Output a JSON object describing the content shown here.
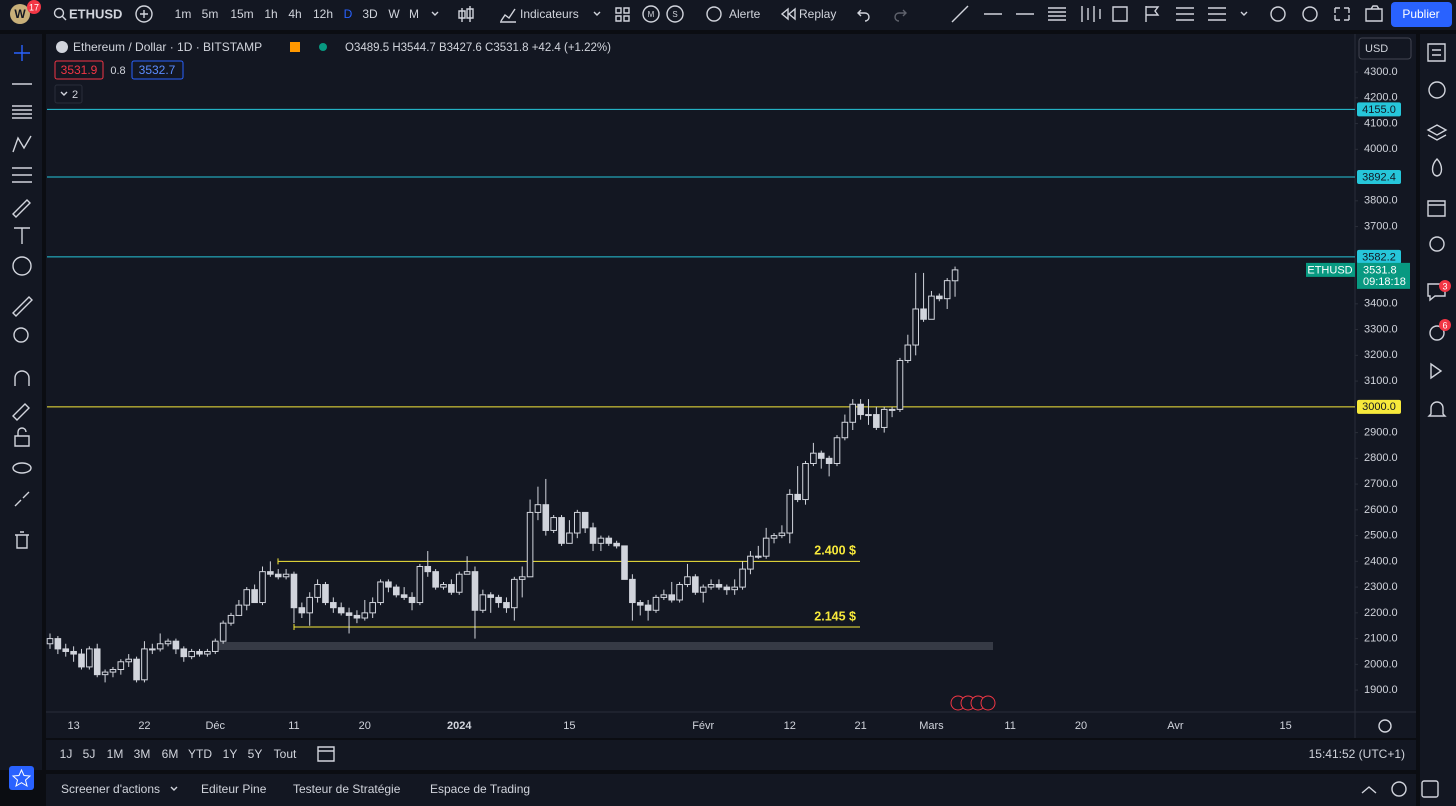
{
  "toolbar": {
    "logo_badge": "17",
    "symbol": "ETHUSD",
    "intervals": [
      "1m",
      "5m",
      "15m",
      "1h",
      "4h",
      "12h",
      "D",
      "3D",
      "W",
      "M"
    ],
    "indicators": "Indicateurs",
    "alert": "Alerte",
    "replay": "Replay",
    "publish": "Publier"
  },
  "legend": {
    "title": "Ethereum / Dollar · 1D · BITSTAMP",
    "ohlc": "O3489.5 H3544.7 B3427.6 C3531.8 +42.4 (+1.22%)",
    "bid": "3531.9",
    "spread": "0.8",
    "ask": "3532.7",
    "collapsed_count": "2"
  },
  "currency": "USD",
  "chart_data": {
    "type": "candlestick",
    "categories": [
      null,
      null,
      null,
      "13",
      null,
      null,
      null,
      null,
      null,
      null,
      null,
      null,
      "22",
      null,
      null,
      null,
      null,
      null,
      null,
      null,
      null,
      "Déc",
      null,
      null,
      null,
      null,
      null,
      null,
      null,
      null,
      null,
      "11",
      null,
      null,
      null,
      null,
      null,
      null,
      null,
      null,
      "20",
      null,
      null,
      null,
      null,
      null,
      null,
      null,
      null,
      null,
      null,
      null,
      "2024",
      null,
      null,
      null,
      null,
      null,
      null,
      null,
      null,
      null,
      null,
      null,
      null,
      null,
      "15",
      null,
      null,
      null,
      null,
      null,
      null,
      null,
      null,
      null,
      null,
      null,
      null,
      null,
      null,
      null,
      null,
      "Févr",
      null,
      null,
      null,
      null,
      null,
      null,
      null,
      null,
      null,
      null,
      "12",
      null,
      null,
      null,
      null,
      null,
      null,
      null,
      null,
      "21",
      null,
      null,
      null,
      null,
      null,
      null,
      null,
      null,
      "Mars",
      null,
      null,
      null
    ],
    "future_categories": [
      "11",
      "20",
      "Avr",
      "15"
    ],
    "open": [
      2080,
      2100,
      2060,
      2050,
      2040,
      1990,
      2060,
      1960,
      1970,
      1980,
      2010,
      2020,
      1940,
      2060,
      2060,
      2080,
      2090,
      2060,
      2030,
      2050,
      2040,
      2050,
      2090,
      2160,
      2190,
      2230,
      2290,
      2240,
      2360,
      2350,
      2340,
      2350,
      2220,
      2200,
      2260,
      2310,
      2240,
      2220,
      2200,
      2190,
      2180,
      2200,
      2240,
      2320,
      2300,
      2270,
      2260,
      2240,
      2380,
      2360,
      2300,
      2310,
      2280,
      2350,
      2360,
      2210,
      2270,
      2260,
      2240,
      2220,
      2330,
      2340,
      2590,
      2620,
      2520,
      2570,
      2470,
      2510,
      2590,
      2530,
      2470,
      2490,
      2470,
      2460,
      2330,
      2240,
      2230,
      2210,
      2260,
      2270,
      2250,
      2310,
      2340,
      2280,
      2300,
      2310,
      2300,
      2290,
      2300,
      2370,
      2420,
      2420,
      2490,
      2500,
      2510,
      2660,
      2640,
      2780,
      2820,
      2800,
      2780,
      2880,
      2940,
      3010,
      2970,
      2970,
      2920,
      2990,
      2990,
      3180,
      3240,
      3380,
      3340,
      3430,
      3420,
      3489.5
    ],
    "high": [
      2120,
      2110,
      2080,
      2070,
      2060,
      2070,
      2080,
      1980,
      1990,
      2020,
      2040,
      2030,
      2090,
      2080,
      2120,
      2100,
      2100,
      2070,
      2060,
      2060,
      2060,
      2100,
      2170,
      2200,
      2250,
      2300,
      2310,
      2380,
      2400,
      2370,
      2370,
      2360,
      2240,
      2280,
      2330,
      2320,
      2260,
      2240,
      2220,
      2210,
      2250,
      2260,
      2330,
      2330,
      2310,
      2300,
      2280,
      2390,
      2440,
      2370,
      2320,
      2330,
      2360,
      2420,
      2380,
      2290,
      2280,
      2270,
      2260,
      2340,
      2380,
      2640,
      2690,
      2720,
      2580,
      2580,
      2560,
      2600,
      2590,
      2550,
      2500,
      2500,
      2480,
      2460,
      2350,
      2250,
      2250,
      2270,
      2290,
      2320,
      2320,
      2390,
      2350,
      2310,
      2330,
      2330,
      2310,
      2330,
      2400,
      2440,
      2460,
      2530,
      2510,
      2540,
      2680,
      2770,
      2790,
      2860,
      2830,
      2810,
      2890,
      2970,
      3030,
      3030,
      3030,
      3000,
      3000,
      3000,
      3190,
      3280,
      3520,
      3520,
      3450,
      3440,
      3500,
      3544.7
    ],
    "low": [
      2060,
      2040,
      2030,
      2010,
      1980,
      1980,
      1950,
      1930,
      1950,
      1960,
      1990,
      1930,
      1930,
      2040,
      2050,
      2070,
      2040,
      2010,
      2020,
      2030,
      2030,
      2040,
      2080,
      2150,
      2190,
      2210,
      2240,
      2230,
      2340,
      2330,
      2330,
      2160,
      2180,
      2150,
      2240,
      2230,
      2200,
      2190,
      2120,
      2160,
      2170,
      2180,
      2230,
      2280,
      2260,
      2250,
      2210,
      2230,
      2340,
      2290,
      2290,
      2270,
      2270,
      2350,
      2100,
      2200,
      2200,
      2220,
      2200,
      2170,
      2260,
      2340,
      2560,
      2500,
      2510,
      2460,
      2470,
      2490,
      2510,
      2440,
      2440,
      2460,
      2450,
      2330,
      2170,
      2190,
      2170,
      2200,
      2250,
      2240,
      2240,
      2300,
      2270,
      2240,
      2290,
      2290,
      2270,
      2270,
      2290,
      2350,
      2410,
      2410,
      2470,
      2490,
      2470,
      2630,
      2620,
      2770,
      2760,
      2730,
      2770,
      2870,
      2910,
      2950,
      2930,
      2910,
      2900,
      2960,
      2980,
      3170,
      3200,
      3330,
      3340,
      3410,
      3380,
      3427.6
    ],
    "close": [
      2100,
      2060,
      2050,
      2040,
      1990,
      2060,
      1960,
      1970,
      1980,
      2010,
      2020,
      1940,
      2060,
      2060,
      2080,
      2090,
      2060,
      2030,
      2050,
      2040,
      2050,
      2090,
      2160,
      2190,
      2230,
      2290,
      2240,
      2360,
      2350,
      2340,
      2350,
      2220,
      2200,
      2260,
      2310,
      2240,
      2220,
      2200,
      2190,
      2180,
      2200,
      2240,
      2320,
      2300,
      2270,
      2260,
      2240,
      2380,
      2360,
      2300,
      2310,
      2280,
      2350,
      2360,
      2210,
      2270,
      2260,
      2240,
      2220,
      2330,
      2340,
      2590,
      2620,
      2520,
      2570,
      2470,
      2510,
      2590,
      2530,
      2470,
      2490,
      2470,
      2460,
      2330,
      2240,
      2230,
      2210,
      2260,
      2270,
      2250,
      2310,
      2340,
      2280,
      2300,
      2310,
      2300,
      2290,
      2300,
      2370,
      2420,
      2420,
      2490,
      2500,
      2510,
      2660,
      2640,
      2780,
      2820,
      2800,
      2780,
      2880,
      2940,
      3010,
      2970,
      2970,
      2920,
      2990,
      2990,
      3180,
      3240,
      3380,
      3340,
      3430,
      3420,
      3490,
      3531.8
    ],
    "ylim": [
      1815,
      4440
    ],
    "yticks": [
      {
        "value": 4300,
        "label": "4300.0"
      },
      {
        "value": 4200,
        "label": "4200.0"
      },
      {
        "value": 4100,
        "label": "4100.0"
      },
      {
        "value": 4000,
        "label": "4000.0"
      },
      {
        "value": 3800,
        "label": "3800.0"
      },
      {
        "value": 3700,
        "label": "3700.0"
      },
      {
        "value": 3400,
        "label": "3400.0"
      },
      {
        "value": 3300,
        "label": "3300.0"
      },
      {
        "value": 3200,
        "label": "3200.0"
      },
      {
        "value": 3100,
        "label": "3100.0"
      },
      {
        "value": 2900,
        "label": "2900.0"
      },
      {
        "value": 2800,
        "label": "2800.0"
      },
      {
        "value": 2700,
        "label": "2700.0"
      },
      {
        "value": 2600,
        "label": "2600.0"
      },
      {
        "value": 2500,
        "label": "2500.0"
      },
      {
        "value": 2400,
        "label": "2400.0"
      },
      {
        "value": 2300,
        "label": "2300.0"
      },
      {
        "value": 2200,
        "label": "2200.0"
      },
      {
        "value": 2100,
        "label": "2100.0"
      },
      {
        "value": 2000,
        "label": "2000.0"
      },
      {
        "value": 1900,
        "label": "1900.0"
      }
    ],
    "grid": false,
    "levels": [
      {
        "value": 4155.0,
        "label": "4155.0",
        "color": "#26c6da"
      },
      {
        "value": 3892.4,
        "label": "3892.4",
        "color": "#26c6da"
      },
      {
        "value": 3582.2,
        "label": "3582.2",
        "color": "#26c6da"
      },
      {
        "value": 3000.0,
        "label": "3000.0",
        "color": "#f7e93b"
      }
    ],
    "zones": [
      {
        "value": 2400,
        "label": "2.400 $"
      },
      {
        "value": 2145,
        "label": "2.145 $"
      }
    ],
    "zone_color": "#f7e93b",
    "last_price": {
      "symbol": "ETHUSD",
      "price": "3531.8",
      "countdown": "09:18:18",
      "color": "#089981"
    }
  },
  "range_bar": {
    "ranges": [
      "1J",
      "5J",
      "1M",
      "3M",
      "6M",
      "YTD",
      "1Y",
      "5Y",
      "Tout"
    ],
    "clock": "15:41:52 (UTC+1)"
  },
  "bottom_panel": {
    "tabs": [
      "Screener d'actions",
      "Editeur Pine",
      "Testeur de Stratégie",
      "Espace de Trading"
    ]
  },
  "sidebar_badges": [
    "3",
    "6"
  ]
}
